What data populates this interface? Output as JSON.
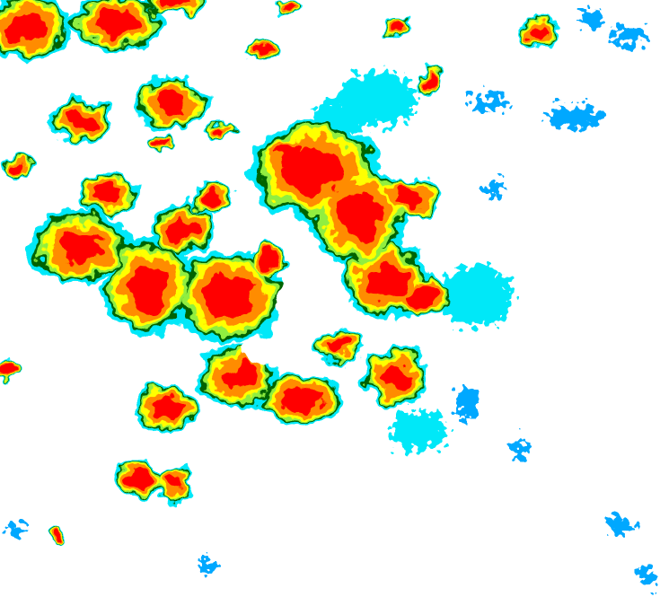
{
  "image": {
    "kind": "weather radar / cloud-top intensity map",
    "background_color": "#ffffff",
    "palette": {
      "level_1": "#00a8ff",
      "level_2": "#00e8f8",
      "level_3": "#006400",
      "level_4": "#90ee40",
      "level_5": "#ffff00",
      "level_6": "#ff8c00",
      "level_7": "#ff0000"
    }
  }
}
